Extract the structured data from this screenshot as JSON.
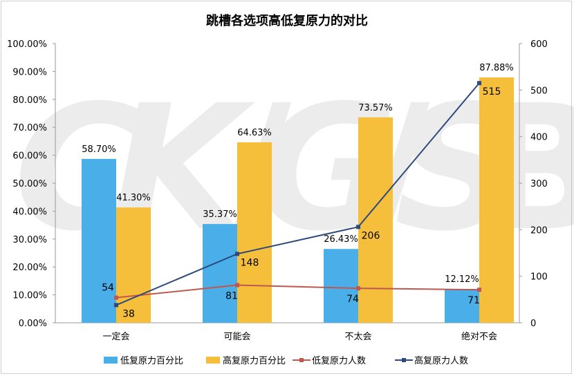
{
  "chart_data": {
    "type": "bar+line",
    "title": "跳槽各选项高低复原力的对比",
    "categories": [
      "一定会",
      "可能会",
      "不太会",
      "绝对不会"
    ],
    "bar_series": [
      {
        "name": "低复原力百分比",
        "values": [
          58.7,
          35.37,
          26.43,
          12.12
        ],
        "color": "#4aaee8"
      },
      {
        "name": "高复原力百分比",
        "values": [
          41.3,
          64.63,
          73.57,
          87.88
        ],
        "color": "#f5bf3c"
      }
    ],
    "line_series": [
      {
        "name": "低复原力人数",
        "values": [
          54,
          81,
          74,
          71
        ],
        "color": "#c0574f"
      },
      {
        "name": "高复原力人数",
        "values": [
          38,
          148,
          206,
          515
        ],
        "color": "#2c4a7c"
      }
    ],
    "y_left": {
      "min": 0,
      "max": 100,
      "step": 10,
      "format": "percent2"
    },
    "y_right": {
      "min": 0,
      "max": 600,
      "step": 100
    },
    "legend_position": "bottom",
    "watermark": "CKGSB"
  }
}
